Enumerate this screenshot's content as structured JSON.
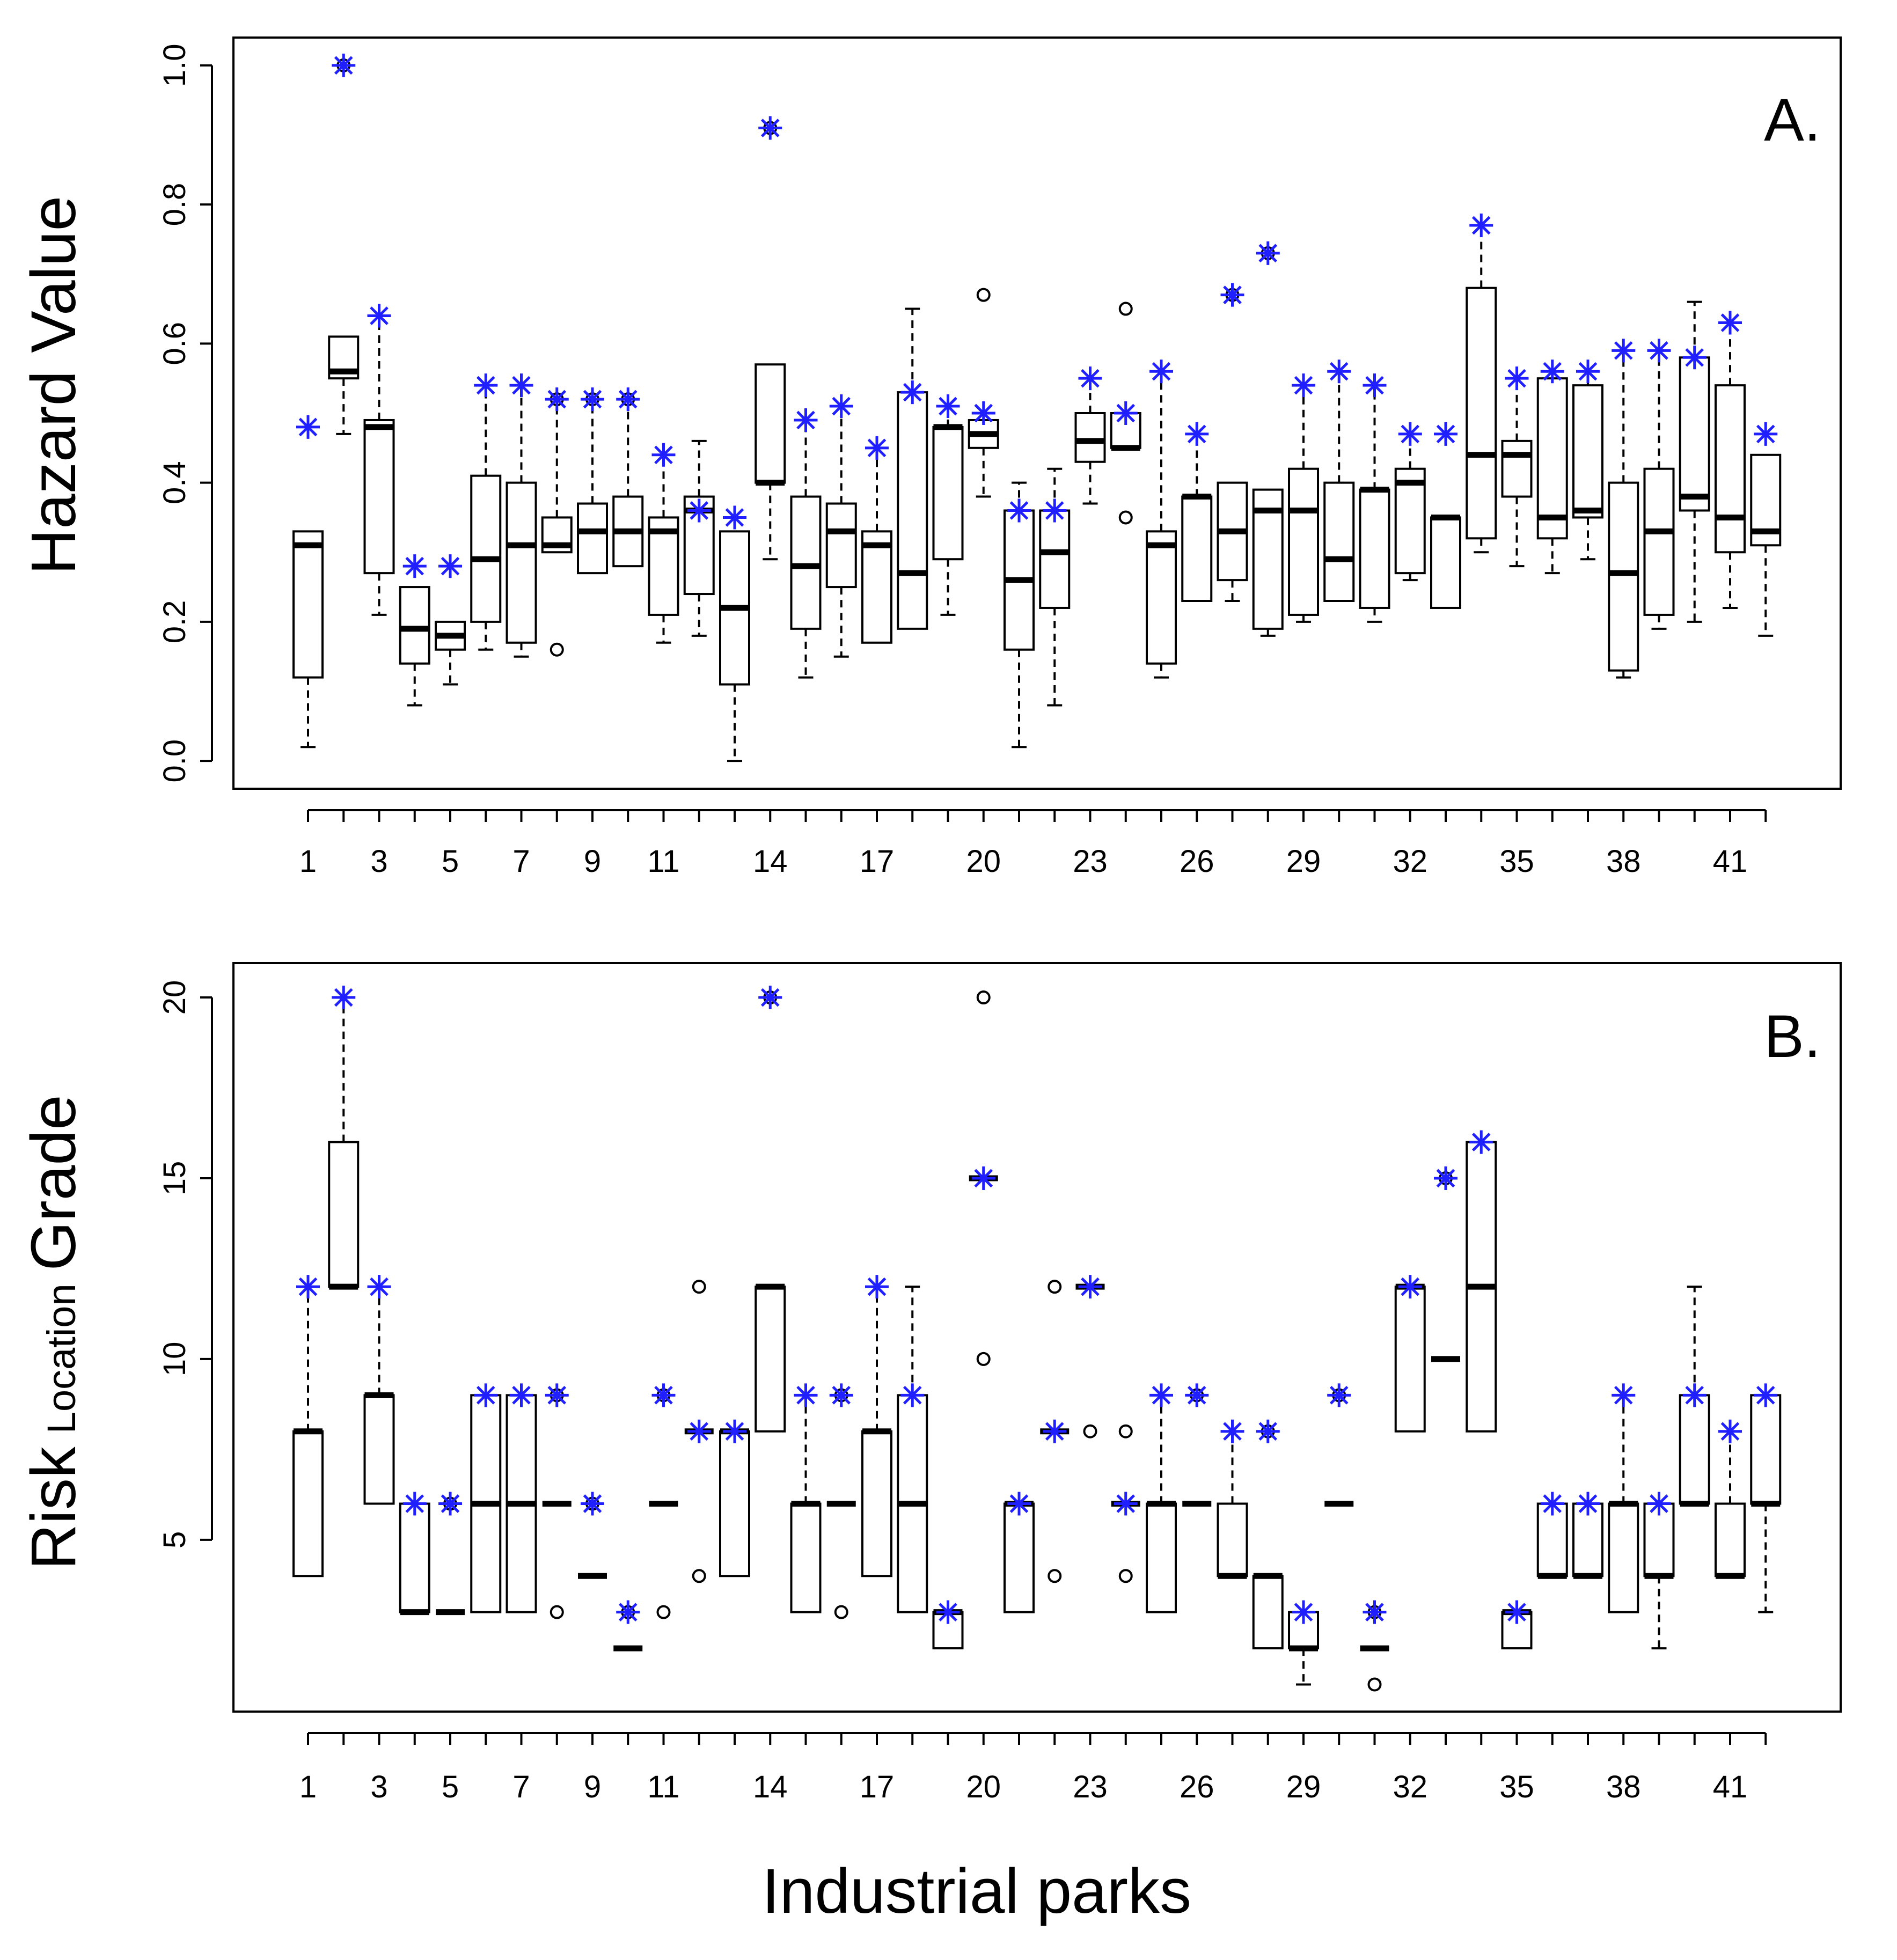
{
  "x_axis_label": "Industrial parks",
  "chart_data": [
    {
      "type": "boxplot",
      "panel_label": "A.",
      "ylabel": "Hazard Value",
      "ylim": [
        0,
        1.0
      ],
      "yticks": [
        0.0,
        0.2,
        0.4,
        0.6,
        0.8,
        1.0
      ],
      "ytick_labels": [
        "0.0",
        "0.2",
        "0.4",
        "0.6",
        "0.8",
        "1.0"
      ],
      "xtick_labels": [
        "1",
        "3",
        "5",
        "7",
        "9",
        "11",
        "14",
        "17",
        "20",
        "23",
        "26",
        "29",
        "32",
        "35",
        "38",
        "41"
      ],
      "xtick_positions": [
        1,
        3,
        5,
        7,
        9,
        11,
        14,
        17,
        20,
        23,
        26,
        29,
        32,
        35,
        38,
        41
      ],
      "categories": [
        1,
        2,
        3,
        4,
        5,
        6,
        7,
        8,
        9,
        10,
        11,
        12,
        13,
        14,
        15,
        16,
        17,
        18,
        19,
        20,
        21,
        22,
        23,
        24,
        25,
        26,
        27,
        28,
        29,
        30,
        31,
        32,
        33,
        34,
        35,
        36,
        37,
        38,
        39,
        40,
        41,
        42
      ],
      "boxes": [
        {
          "lw": 0.02,
          "q1": 0.12,
          "med": 0.31,
          "q3": 0.33,
          "uw": 0.33,
          "star": 0.48,
          "out": []
        },
        {
          "lw": 0.47,
          "q1": 0.55,
          "med": 0.56,
          "q3": 0.61,
          "uw": 0.61,
          "star": 1.0,
          "out": [
            1.0
          ]
        },
        {
          "lw": 0.21,
          "q1": 0.27,
          "med": 0.48,
          "q3": 0.49,
          "uw": 0.64,
          "star": 0.64,
          "out": []
        },
        {
          "lw": 0.08,
          "q1": 0.14,
          "med": 0.19,
          "q3": 0.25,
          "uw": 0.25,
          "star": 0.28,
          "out": []
        },
        {
          "lw": 0.11,
          "q1": 0.16,
          "med": 0.18,
          "q3": 0.2,
          "uw": 0.2,
          "star": 0.28,
          "out": []
        },
        {
          "lw": 0.16,
          "q1": 0.2,
          "med": 0.29,
          "q3": 0.41,
          "uw": 0.54,
          "star": 0.54,
          "out": []
        },
        {
          "lw": 0.15,
          "q1": 0.17,
          "med": 0.31,
          "q3": 0.4,
          "uw": 0.54,
          "star": 0.54,
          "out": []
        },
        {
          "lw": 0.3,
          "q1": 0.3,
          "med": 0.31,
          "q3": 0.35,
          "uw": 0.52,
          "star": 0.52,
          "out": [
            0.52,
            0.16
          ]
        },
        {
          "lw": 0.27,
          "q1": 0.27,
          "med": 0.33,
          "q3": 0.37,
          "uw": 0.52,
          "star": 0.52,
          "out": [
            0.52
          ]
        },
        {
          "lw": 0.28,
          "q1": 0.28,
          "med": 0.33,
          "q3": 0.38,
          "uw": 0.52,
          "star": 0.52,
          "out": [
            0.52
          ]
        },
        {
          "lw": 0.17,
          "q1": 0.21,
          "med": 0.33,
          "q3": 0.35,
          "uw": 0.44,
          "star": 0.44,
          "out": []
        },
        {
          "lw": 0.18,
          "q1": 0.24,
          "med": 0.36,
          "q3": 0.38,
          "uw": 0.46,
          "star": 0.36,
          "out": []
        },
        {
          "lw": 0.0,
          "q1": 0.11,
          "med": 0.22,
          "q3": 0.33,
          "uw": 0.33,
          "star": 0.35,
          "out": []
        },
        {
          "lw": 0.29,
          "q1": 0.4,
          "med": 0.4,
          "q3": 0.57,
          "uw": 0.57,
          "star": 0.91,
          "out": [
            0.91
          ]
        },
        {
          "lw": 0.12,
          "q1": 0.19,
          "med": 0.28,
          "q3": 0.38,
          "uw": 0.49,
          "star": 0.49,
          "out": []
        },
        {
          "lw": 0.15,
          "q1": 0.25,
          "med": 0.33,
          "q3": 0.37,
          "uw": 0.51,
          "star": 0.51,
          "out": []
        },
        {
          "lw": 0.17,
          "q1": 0.17,
          "med": 0.31,
          "q3": 0.33,
          "uw": 0.45,
          "star": 0.45,
          "out": []
        },
        {
          "lw": 0.19,
          "q1": 0.19,
          "med": 0.27,
          "q3": 0.53,
          "uw": 0.65,
          "star": 0.53,
          "out": []
        },
        {
          "lw": 0.21,
          "q1": 0.29,
          "med": 0.48,
          "q3": 0.48,
          "uw": 0.51,
          "star": 0.51,
          "out": []
        },
        {
          "lw": 0.38,
          "q1": 0.45,
          "med": 0.47,
          "q3": 0.49,
          "uw": 0.5,
          "star": 0.5,
          "out": [
            0.67
          ]
        },
        {
          "lw": 0.02,
          "q1": 0.16,
          "med": 0.26,
          "q3": 0.36,
          "uw": 0.4,
          "star": 0.36,
          "out": []
        },
        {
          "lw": 0.08,
          "q1": 0.22,
          "med": 0.3,
          "q3": 0.36,
          "uw": 0.42,
          "star": 0.36,
          "out": []
        },
        {
          "lw": 0.37,
          "q1": 0.43,
          "med": 0.46,
          "q3": 0.5,
          "uw": 0.55,
          "star": 0.55,
          "out": []
        },
        {
          "lw": 0.45,
          "q1": 0.45,
          "med": 0.45,
          "q3": 0.5,
          "uw": 0.5,
          "star": 0.5,
          "out": [
            0.65,
            0.35
          ]
        },
        {
          "lw": 0.12,
          "q1": 0.14,
          "med": 0.31,
          "q3": 0.33,
          "uw": 0.56,
          "star": 0.56,
          "out": []
        },
        {
          "lw": 0.23,
          "q1": 0.23,
          "med": 0.38,
          "q3": 0.38,
          "uw": 0.47,
          "star": 0.47,
          "out": []
        },
        {
          "lw": 0.23,
          "q1": 0.26,
          "med": 0.33,
          "q3": 0.4,
          "uw": 0.4,
          "star": 0.67,
          "out": [
            0.67
          ]
        },
        {
          "lw": 0.18,
          "q1": 0.19,
          "med": 0.36,
          "q3": 0.39,
          "uw": 0.39,
          "star": 0.73,
          "out": [
            0.73
          ]
        },
        {
          "lw": 0.2,
          "q1": 0.21,
          "med": 0.36,
          "q3": 0.42,
          "uw": 0.54,
          "star": 0.54,
          "out": []
        },
        {
          "lw": 0.23,
          "q1": 0.23,
          "med": 0.29,
          "q3": 0.4,
          "uw": 0.56,
          "star": 0.56,
          "out": []
        },
        {
          "lw": 0.2,
          "q1": 0.22,
          "med": 0.39,
          "q3": 0.39,
          "uw": 0.54,
          "star": 0.54,
          "out": []
        },
        {
          "lw": 0.26,
          "q1": 0.27,
          "med": 0.4,
          "q3": 0.42,
          "uw": 0.47,
          "star": 0.47,
          "out": []
        },
        {
          "lw": 0.22,
          "q1": 0.22,
          "med": 0.35,
          "q3": 0.35,
          "uw": 0.35,
          "star": 0.47,
          "out": []
        },
        {
          "lw": 0.3,
          "q1": 0.32,
          "med": 0.44,
          "q3": 0.68,
          "uw": 0.77,
          "star": 0.77,
          "out": []
        },
        {
          "lw": 0.28,
          "q1": 0.38,
          "med": 0.44,
          "q3": 0.46,
          "uw": 0.55,
          "star": 0.55,
          "out": []
        },
        {
          "lw": 0.27,
          "q1": 0.32,
          "med": 0.35,
          "q3": 0.55,
          "uw": 0.56,
          "star": 0.56,
          "out": []
        },
        {
          "lw": 0.29,
          "q1": 0.35,
          "med": 0.36,
          "q3": 0.54,
          "uw": 0.56,
          "star": 0.56,
          "out": []
        },
        {
          "lw": 0.12,
          "q1": 0.13,
          "med": 0.27,
          "q3": 0.4,
          "uw": 0.59,
          "star": 0.59,
          "out": []
        },
        {
          "lw": 0.19,
          "q1": 0.21,
          "med": 0.33,
          "q3": 0.42,
          "uw": 0.59,
          "star": 0.59,
          "out": []
        },
        {
          "lw": 0.2,
          "q1": 0.36,
          "med": 0.38,
          "q3": 0.58,
          "uw": 0.66,
          "star": 0.58,
          "out": []
        },
        {
          "lw": 0.22,
          "q1": 0.3,
          "med": 0.35,
          "q3": 0.54,
          "uw": 0.63,
          "star": 0.63,
          "out": []
        },
        {
          "lw": 0.18,
          "q1": 0.31,
          "med": 0.33,
          "q3": 0.44,
          "uw": 0.44,
          "star": 0.47,
          "out": []
        }
      ]
    },
    {
      "type": "boxplot",
      "panel_label": "B.",
      "ylabel": "Risk",
      "ylabel_sub": "Location",
      "ylabel_tail": "Grade",
      "ylim": [
        1,
        20
      ],
      "yticks": [
        5,
        10,
        15,
        20
      ],
      "ytick_labels": [
        "5",
        "10",
        "15",
        "20"
      ],
      "xtick_labels": [
        "1",
        "3",
        "5",
        "7",
        "9",
        "11",
        "14",
        "17",
        "20",
        "23",
        "26",
        "29",
        "32",
        "35",
        "38",
        "41"
      ],
      "xtick_positions": [
        1,
        3,
        5,
        7,
        9,
        11,
        14,
        17,
        20,
        23,
        26,
        29,
        32,
        35,
        38,
        41
      ],
      "categories": [
        1,
        2,
        3,
        4,
        5,
        6,
        7,
        8,
        9,
        10,
        11,
        12,
        13,
        14,
        15,
        16,
        17,
        18,
        19,
        20,
        21,
        22,
        23,
        24,
        25,
        26,
        27,
        28,
        29,
        30,
        31,
        32,
        33,
        34,
        35,
        36,
        37,
        38,
        39,
        40,
        41,
        42
      ],
      "boxes": [
        {
          "lw": 4,
          "q1": 4,
          "med": 8,
          "q3": 8,
          "uw": 12,
          "star": 12,
          "out": []
        },
        {
          "lw": 12,
          "q1": 12,
          "med": 12,
          "q3": 16,
          "uw": 20,
          "star": 20,
          "out": []
        },
        {
          "lw": 6,
          "q1": 6,
          "med": 9,
          "q3": 9,
          "uw": 12,
          "star": 12,
          "out": []
        },
        {
          "lw": 3,
          "q1": 3,
          "med": 3,
          "q3": 6,
          "uw": 6,
          "star": 6,
          "out": []
        },
        {
          "lw": 3,
          "q1": 3,
          "med": 3,
          "q3": 3,
          "uw": 3,
          "star": 6,
          "out": [
            6
          ]
        },
        {
          "lw": 3,
          "q1": 3,
          "med": 6,
          "q3": 9,
          "uw": 9,
          "star": 9,
          "out": []
        },
        {
          "lw": 3,
          "q1": 3,
          "med": 6,
          "q3": 9,
          "uw": 9,
          "star": 9,
          "out": []
        },
        {
          "lw": 6,
          "q1": 6,
          "med": 6,
          "q3": 6,
          "uw": 6,
          "star": 9,
          "out": [
            9,
            3
          ]
        },
        {
          "lw": 4,
          "q1": 4,
          "med": 4,
          "q3": 4,
          "uw": 4,
          "star": 6,
          "out": [
            6
          ]
        },
        {
          "lw": 2,
          "q1": 2,
          "med": 2,
          "q3": 2,
          "uw": 2,
          "star": 3,
          "out": [
            3
          ]
        },
        {
          "lw": 6,
          "q1": 6,
          "med": 6,
          "q3": 6,
          "uw": 6,
          "star": 9,
          "out": [
            9,
            3
          ]
        },
        {
          "lw": 8,
          "q1": 8,
          "med": 8,
          "q3": 8,
          "uw": 8,
          "star": 8,
          "out": [
            12,
            4
          ]
        },
        {
          "lw": 4,
          "q1": 4,
          "med": 8,
          "q3": 8,
          "uw": 8,
          "star": 8,
          "out": []
        },
        {
          "lw": 8,
          "q1": 8,
          "med": 12,
          "q3": 12,
          "uw": 12,
          "star": 20,
          "out": [
            20
          ]
        },
        {
          "lw": 3,
          "q1": 3,
          "med": 6,
          "q3": 6,
          "uw": 9,
          "star": 9,
          "out": []
        },
        {
          "lw": 6,
          "q1": 6,
          "med": 6,
          "q3": 6,
          "uw": 6,
          "star": 9,
          "out": [
            9,
            3
          ]
        },
        {
          "lw": 4,
          "q1": 4,
          "med": 8,
          "q3": 8,
          "uw": 12,
          "star": 12,
          "out": []
        },
        {
          "lw": 3,
          "q1": 3,
          "med": 6,
          "q3": 9,
          "uw": 12,
          "star": 9,
          "out": []
        },
        {
          "lw": 2,
          "q1": 2,
          "med": 3,
          "q3": 3,
          "uw": 3,
          "star": 3,
          "out": []
        },
        {
          "lw": 15,
          "q1": 15,
          "med": 15,
          "q3": 15,
          "uw": 15,
          "star": 15,
          "out": [
            20,
            10
          ]
        },
        {
          "lw": 3,
          "q1": 3,
          "med": 6,
          "q3": 6,
          "uw": 6,
          "star": 6,
          "out": []
        },
        {
          "lw": 8,
          "q1": 8,
          "med": 8,
          "q3": 8,
          "uw": 8,
          "star": 8,
          "out": [
            12,
            4
          ]
        },
        {
          "lw": 12,
          "q1": 12,
          "med": 12,
          "q3": 12,
          "uw": 12,
          "star": 12,
          "out": [
            8
          ]
        },
        {
          "lw": 6,
          "q1": 6,
          "med": 6,
          "q3": 6,
          "uw": 6,
          "star": 6,
          "out": [
            8,
            4
          ]
        },
        {
          "lw": 3,
          "q1": 3,
          "med": 6,
          "q3": 6,
          "uw": 9,
          "star": 9,
          "out": []
        },
        {
          "lw": 6,
          "q1": 6,
          "med": 6,
          "q3": 6,
          "uw": 6,
          "star": 9,
          "out": [
            9
          ]
        },
        {
          "lw": 4,
          "q1": 4,
          "med": 4,
          "q3": 6,
          "uw": 8,
          "star": 8,
          "out": []
        },
        {
          "lw": 2,
          "q1": 2,
          "med": 4,
          "q3": 4,
          "uw": 4,
          "star": 8,
          "out": [
            8
          ]
        },
        {
          "lw": 1,
          "q1": 2,
          "med": 2,
          "q3": 3,
          "uw": 3,
          "star": 3,
          "out": []
        },
        {
          "lw": 6,
          "q1": 6,
          "med": 6,
          "q3": 6,
          "uw": 6,
          "star": 9,
          "out": [
            9
          ]
        },
        {
          "lw": 2,
          "q1": 2,
          "med": 2,
          "q3": 2,
          "uw": 2,
          "star": 3,
          "out": [
            3,
            1
          ]
        },
        {
          "lw": 8,
          "q1": 8,
          "med": 12,
          "q3": 12,
          "uw": 12,
          "star": 12,
          "out": []
        },
        {
          "lw": 10,
          "q1": 10,
          "med": 10,
          "q3": 10,
          "uw": 10,
          "star": 15,
          "out": [
            15
          ]
        },
        {
          "lw": 8,
          "q1": 8,
          "med": 12,
          "q3": 16,
          "uw": 16,
          "star": 16,
          "out": []
        },
        {
          "lw": 2,
          "q1": 2,
          "med": 3,
          "q3": 3,
          "uw": 3,
          "star": 3,
          "out": []
        },
        {
          "lw": 4,
          "q1": 4,
          "med": 4,
          "q3": 6,
          "uw": 6,
          "star": 6,
          "out": []
        },
        {
          "lw": 4,
          "q1": 4,
          "med": 4,
          "q3": 6,
          "uw": 6,
          "star": 6,
          "out": []
        },
        {
          "lw": 3,
          "q1": 3,
          "med": 6,
          "q3": 6,
          "uw": 9,
          "star": 9,
          "out": []
        },
        {
          "lw": 2,
          "q1": 4,
          "med": 4,
          "q3": 6,
          "uw": 6,
          "star": 6,
          "out": []
        },
        {
          "lw": 6,
          "q1": 6,
          "med": 6,
          "q3": 9,
          "uw": 12,
          "star": 9,
          "out": []
        },
        {
          "lw": 4,
          "q1": 4,
          "med": 4,
          "q3": 6,
          "uw": 8,
          "star": 8,
          "out": []
        },
        {
          "lw": 3,
          "q1": 6,
          "med": 6,
          "q3": 9,
          "uw": 9,
          "star": 9,
          "out": []
        }
      ]
    }
  ]
}
